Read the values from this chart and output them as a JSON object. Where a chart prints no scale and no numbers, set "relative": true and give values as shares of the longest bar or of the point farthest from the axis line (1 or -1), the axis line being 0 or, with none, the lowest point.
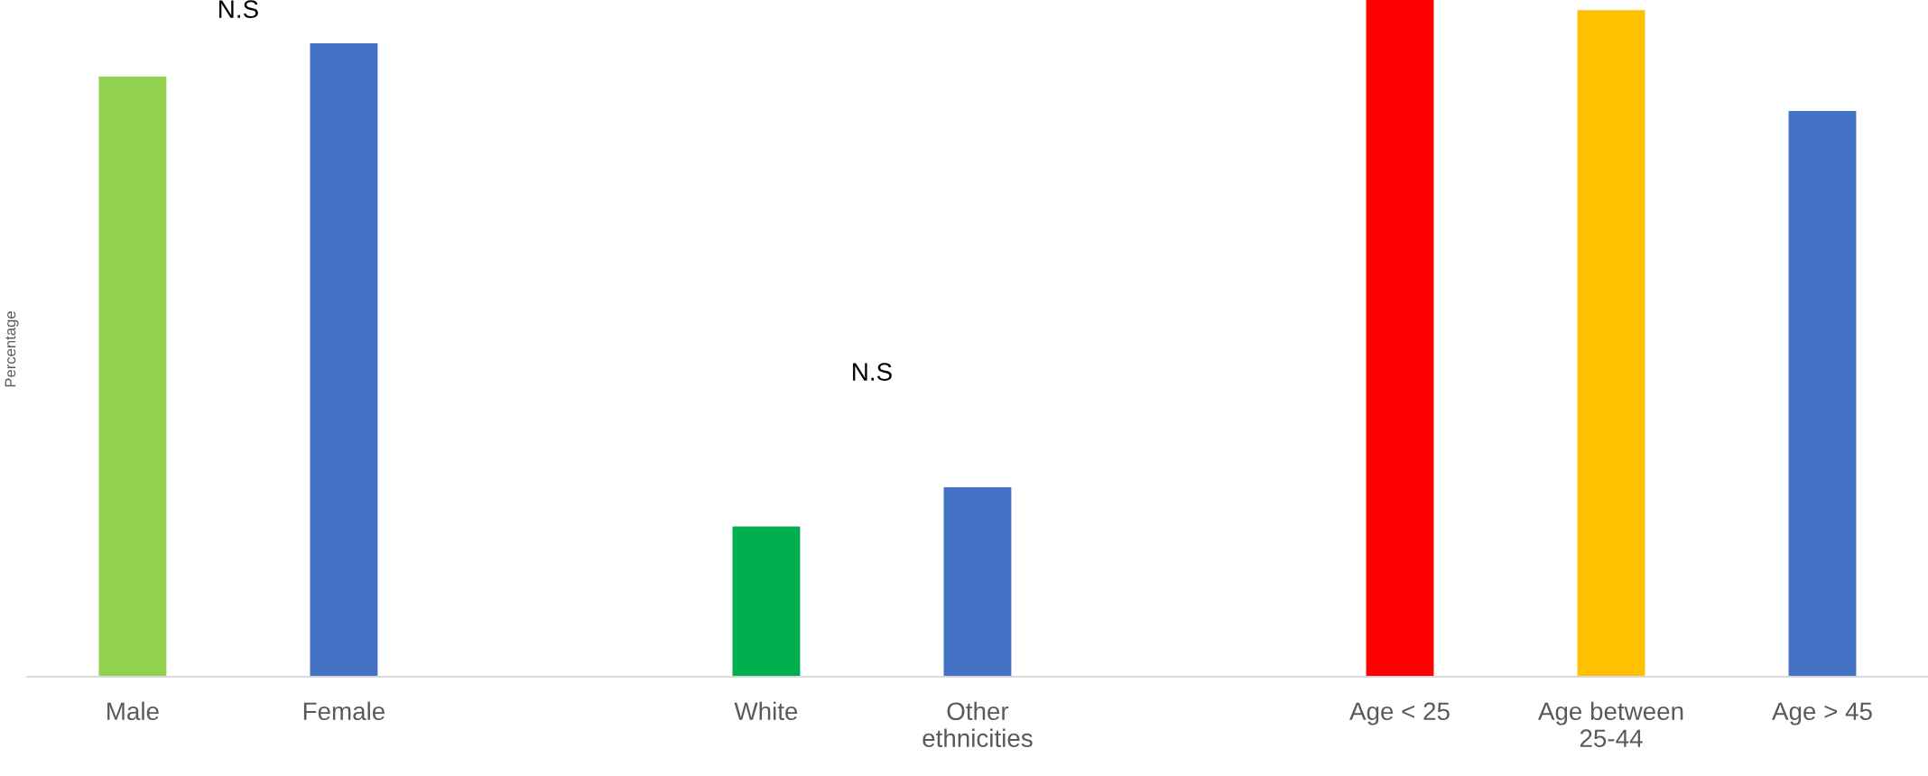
{
  "chart_data": {
    "type": "bar",
    "ylabel": "Percentage",
    "relative": true,
    "categories": [
      "Male",
      "Female",
      null,
      "White",
      "Other ethnicities",
      null,
      "Age < 25",
      "Age between 25-44",
      "Age > 45"
    ],
    "values": [
      0.887,
      0.936,
      null,
      0.222,
      0.28,
      null,
      1,
      0.985,
      0.836
    ],
    "colors": [
      "#92d050",
      "#4472c4",
      null,
      "#00b050",
      "#4472c4",
      null,
      "#ff0000",
      "#ffc000",
      "#4472c4"
    ],
    "annotations": [
      "N.S",
      "N.S"
    ],
    "grid": false,
    "legend": false
  }
}
